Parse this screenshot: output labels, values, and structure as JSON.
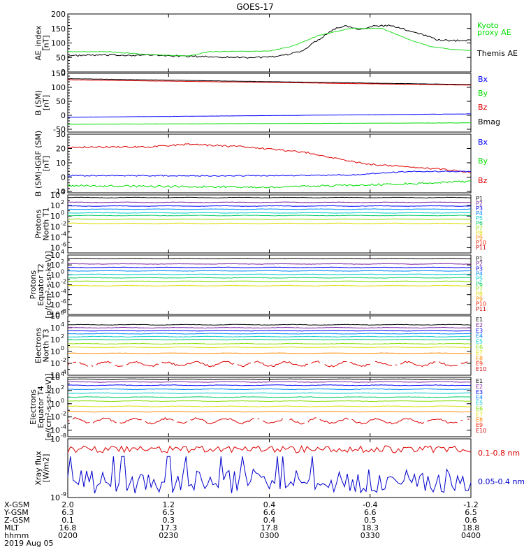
{
  "chart_data": {
    "title": "GOES-17",
    "type": "line",
    "panels": [
      {
        "id": "ae",
        "ylabel": [
          "AE_index",
          "[nT]"
        ],
        "scale": "linear",
        "ylim": [
          0,
          200
        ],
        "ticks": [
          "0",
          "50",
          "100",
          "150",
          "200"
        ],
        "tick_values": [
          0,
          50,
          100,
          150,
          200
        ],
        "legend": [
          {
            "label": "Kyoto",
            "color": "#00dd00"
          },
          {
            "label": "proxy AE",
            "color": "#00dd00"
          },
          {
            "label": "Themis AE",
            "color": "#000000"
          }
        ],
        "series": [
          {
            "name": "Themis AE",
            "color": "#000000",
            "kind": "themis"
          },
          {
            "name": "Kyoto proxy AE",
            "color": "#22dd22",
            "kind": "kyoto"
          }
        ]
      },
      {
        "id": "bsm",
        "ylabel": [
          "B (SM)",
          "[nT]"
        ],
        "scale": "linear",
        "ylim": [
          -60,
          150
        ],
        "ticks": [
          "-50",
          "0",
          "50",
          "100",
          "150"
        ],
        "tick_values": [
          -50,
          0,
          50,
          100,
          150
        ],
        "legend": [
          {
            "label": "Bx",
            "color": "#0000ff"
          },
          {
            "label": "By",
            "color": "#00dd00"
          },
          {
            "label": "Bz",
            "color": "#dd0000"
          },
          {
            "label": "Bmag",
            "color": "#000000"
          }
        ],
        "series": [
          {
            "name": "Bmag",
            "color": "#000000",
            "start": 131,
            "end": 110,
            "wiggle": 0.8
          },
          {
            "name": "Bz",
            "color": "#dd0000",
            "start": 127,
            "end": 108,
            "wiggle": 0.8
          },
          {
            "name": "Bx",
            "color": "#0000ff",
            "start": -7,
            "end": 5,
            "wiggle": 0.5
          },
          {
            "name": "By",
            "color": "#00dd00",
            "start": -32,
            "end": -27,
            "wiggle": 0.6
          }
        ]
      },
      {
        "id": "bigrf",
        "ylabel": [
          "B (SM)-IGRF (SM)",
          "[nT]"
        ],
        "scale": "linear",
        "ylim": [
          -11,
          30
        ],
        "ticks": [
          "-10",
          "0",
          "10",
          "20",
          "30"
        ],
        "tick_values": [
          -10,
          0,
          10,
          20,
          30
        ],
        "legend": [
          {
            "label": "Bx",
            "color": "#0000ff"
          },
          {
            "label": "By",
            "color": "#00dd00"
          },
          {
            "label": "Bz",
            "color": "#dd0000"
          }
        ],
        "series": [
          {
            "name": "Bz",
            "color": "#dd0000",
            "kind": "bz_igrf"
          },
          {
            "name": "Bx",
            "color": "#0000ff",
            "kind": "bx_igrf"
          },
          {
            "name": "By",
            "color": "#00dd00",
            "kind": "by_igrf"
          }
        ]
      },
      {
        "id": "p_north",
        "ylabel": [
          "Protons",
          "North T1"
        ],
        "scale": "log",
        "ylim": [
          -7,
          4
        ],
        "tick_exps": [
          4,
          2,
          0,
          -2,
          -4,
          -6
        ],
        "ticks": [
          "10",
          "10",
          "10",
          "10",
          "10",
          "10"
        ],
        "tick_sup": [
          "4",
          "2",
          "0",
          "-2",
          "-4",
          "-6"
        ],
        "legend": [
          {
            "label": "P1",
            "color": "#000000"
          },
          {
            "label": "P2",
            "color": "#7a1fa2"
          },
          {
            "label": "P3",
            "color": "#0000ff"
          },
          {
            "label": "P4",
            "color": "#0088ff"
          },
          {
            "label": "P5",
            "color": "#00cccc"
          },
          {
            "label": "P6",
            "color": "#00cc66"
          },
          {
            "label": "P7",
            "color": "#88dd00"
          },
          {
            "label": "P8",
            "color": "#dddd00"
          },
          {
            "label": "P9",
            "color": "#ff8800"
          },
          {
            "label": "P10",
            "color": "#ff2200"
          },
          {
            "label": "P11",
            "color": "#cc0000"
          }
        ],
        "series": [
          {
            "color": "#000000",
            "level": 3.5
          },
          {
            "color": "#7a1fa2",
            "level": 2.6
          },
          {
            "color": "#0000ff",
            "level": 1.9
          },
          {
            "color": "#0088ff",
            "level": 1.3
          },
          {
            "color": "#00cccc",
            "level": 0.6
          },
          {
            "color": "#00cc66",
            "level": 0.1
          },
          {
            "color": "#88dd00",
            "level": -0.6
          },
          {
            "color": "#dddd00",
            "level": -1.4
          }
        ]
      },
      {
        "id": "p_eq",
        "ylabel": [
          "Protons",
          "Equator T2",
          "[p/(cm²-s-sr-keV)]"
        ],
        "scale": "log",
        "ylim": [
          -8,
          4
        ],
        "tick_exps": [
          4,
          2,
          0,
          -2,
          -4,
          -6,
          -8
        ],
        "ticks": [
          "10",
          "10",
          "10",
          "10",
          "10",
          "10",
          "10"
        ],
        "tick_sup": [
          "4",
          "2",
          "0",
          "-2",
          "-4",
          "-6",
          "-8"
        ],
        "legend": [
          {
            "label": "P1",
            "color": "#000000"
          },
          {
            "label": "P2",
            "color": "#7a1fa2"
          },
          {
            "label": "P3",
            "color": "#0000ff"
          },
          {
            "label": "P4",
            "color": "#0088ff"
          },
          {
            "label": "P5",
            "color": "#00cccc"
          },
          {
            "label": "P6",
            "color": "#00cc66"
          },
          {
            "label": "P7",
            "color": "#88dd00"
          },
          {
            "label": "P8",
            "color": "#dddd00"
          },
          {
            "label": "P9",
            "color": "#ff8800"
          },
          {
            "label": "P10",
            "color": "#ff2200"
          },
          {
            "label": "P11",
            "color": "#cc0000"
          }
        ],
        "series": [
          {
            "color": "#000000",
            "level": 3.3
          },
          {
            "color": "#7a1fa2",
            "level": 2.2
          },
          {
            "color": "#0000ff",
            "level": 1.5
          },
          {
            "color": "#0088ff",
            "level": 0.8
          },
          {
            "color": "#00cccc",
            "level": 0.1
          },
          {
            "color": "#00cc66",
            "level": -0.6
          },
          {
            "color": "#88dd00",
            "level": -1.3
          },
          {
            "color": "#dddd00",
            "level": -2.2
          }
        ]
      },
      {
        "id": "e_north",
        "ylabel": [
          "Electrons",
          "North T3"
        ],
        "scale": "log",
        "ylim": [
          -4,
          6
        ],
        "tick_exps": [
          6,
          4,
          2,
          0,
          -2,
          -4
        ],
        "ticks": [
          "10",
          "10",
          "10",
          "10",
          "10",
          "10"
        ],
        "tick_sup": [
          "6",
          "4",
          "2",
          "0",
          "-2",
          "-4"
        ],
        "legend": [
          {
            "label": "E1",
            "color": "#000000"
          },
          {
            "label": "E2",
            "color": "#7a1fa2"
          },
          {
            "label": "E3",
            "color": "#0000ff"
          },
          {
            "label": "E4",
            "color": "#0088ff"
          },
          {
            "label": "E5",
            "color": "#00cccc"
          },
          {
            "label": "E6",
            "color": "#88dd00"
          },
          {
            "label": "E7",
            "color": "#dddd00"
          },
          {
            "label": "E8",
            "color": "#ff8800"
          },
          {
            "label": "E9",
            "color": "#ff2200"
          },
          {
            "label": "E10",
            "color": "#cc0000"
          }
        ],
        "series": [
          {
            "color": "#000000",
            "level": 4.5
          },
          {
            "color": "#7a1fa2",
            "level": 4.0
          },
          {
            "color": "#0000ff",
            "level": 3.5
          },
          {
            "color": "#0088ff",
            "level": 3.0
          },
          {
            "color": "#00cccc",
            "level": 2.5
          },
          {
            "color": "#00cc66",
            "level": 2.0
          },
          {
            "color": "#88dd00",
            "level": 1.3
          },
          {
            "color": "#dddd00",
            "level": 0.7
          },
          {
            "color": "#ff8800",
            "level": -0.3
          },
          {
            "color": "#dd0000",
            "level": -2.1,
            "noisy": true
          }
        ]
      },
      {
        "id": "e_eq",
        "ylabel": [
          "Electrons",
          "Equator T4",
          "[e/(cm²-s-sr-keV)]"
        ],
        "scale": "log",
        "ylim": [
          -5,
          4
        ],
        "tick_exps": [
          4,
          2,
          0,
          -2,
          -4
        ],
        "ticks": [
          "10",
          "10",
          "10",
          "10",
          "10"
        ],
        "tick_sup": [
          "4",
          "2",
          "0",
          "-2",
          "-4"
        ],
        "legend": [
          {
            "label": "E1",
            "color": "#000000"
          },
          {
            "label": "E2",
            "color": "#7a1fa2"
          },
          {
            "label": "E3",
            "color": "#0000ff"
          },
          {
            "label": "E4",
            "color": "#0088ff"
          },
          {
            "label": "E5",
            "color": "#00cccc"
          },
          {
            "label": "E6",
            "color": "#88dd00"
          },
          {
            "label": "E7",
            "color": "#dddd00"
          },
          {
            "label": "E8",
            "color": "#ff8800"
          },
          {
            "label": "E9",
            "color": "#ff2200"
          },
          {
            "label": "E10",
            "color": "#cc0000"
          }
        ],
        "series": [
          {
            "color": "#000000",
            "level": 3.7
          },
          {
            "color": "#7a1fa2",
            "level": 3.3
          },
          {
            "color": "#0000ff",
            "level": 2.8
          },
          {
            "color": "#0088ff",
            "level": 2.2
          },
          {
            "color": "#00cccc",
            "level": 1.6
          },
          {
            "color": "#00cc66",
            "level": 1.0
          },
          {
            "color": "#88dd00",
            "level": 0.4
          },
          {
            "color": "#dddd00",
            "level": -0.4
          },
          {
            "color": "#ff8800",
            "level": -1.2
          },
          {
            "color": "#dd0000",
            "level": -2.6,
            "noisy": true
          }
        ]
      },
      {
        "id": "xray",
        "ylabel": [
          "Xray flux",
          "[W/m2]"
        ],
        "scale": "log",
        "ylim": [
          -9,
          -8
        ],
        "tick_exps": [
          -8,
          -9
        ],
        "ticks": [
          "10",
          "10"
        ],
        "tick_sup": [
          "-8",
          "-9"
        ],
        "legend": [
          {
            "label": "0.1-0.8 nm",
            "color": "#dd0000"
          },
          {
            "label": "0.05-0.4 nm",
            "color": "#0000cc"
          }
        ],
        "series": [
          {
            "name": "0.1-0.8 nm",
            "color": "#dd0000",
            "kind": "xlong"
          },
          {
            "name": "0.05-0.4 nm",
            "color": "#0000cc",
            "kind": "xshort"
          }
        ]
      }
    ],
    "x_axis": {
      "time_range": [
        "0200",
        "0400"
      ],
      "row_labels": [
        "X-GSM",
        "Y-GSM",
        "Z-GSM",
        "MLT",
        "hhmm"
      ],
      "columns": [
        {
          "x_gsm": "2.0",
          "y_gsm": "6.3",
          "z_gsm": "0.1",
          "mlt": "16.8",
          "hhmm": "0200"
        },
        {
          "x_gsm": "1.2",
          "y_gsm": "6.5",
          "z_gsm": "0.3",
          "mlt": "17.3",
          "hhmm": "0230"
        },
        {
          "x_gsm": "0.4",
          "y_gsm": "6.6",
          "z_gsm": "0.4",
          "mlt": "17.8",
          "hhmm": "0300"
        },
        {
          "x_gsm": "-0.4",
          "y_gsm": "6.6",
          "z_gsm": "0.5",
          "mlt": "18.3",
          "hhmm": "0330"
        },
        {
          "x_gsm": "-1.2",
          "y_gsm": "6.5",
          "z_gsm": "0.6",
          "mlt": "18.8",
          "hhmm": "0400"
        }
      ],
      "date": "2019 Aug 05"
    }
  }
}
